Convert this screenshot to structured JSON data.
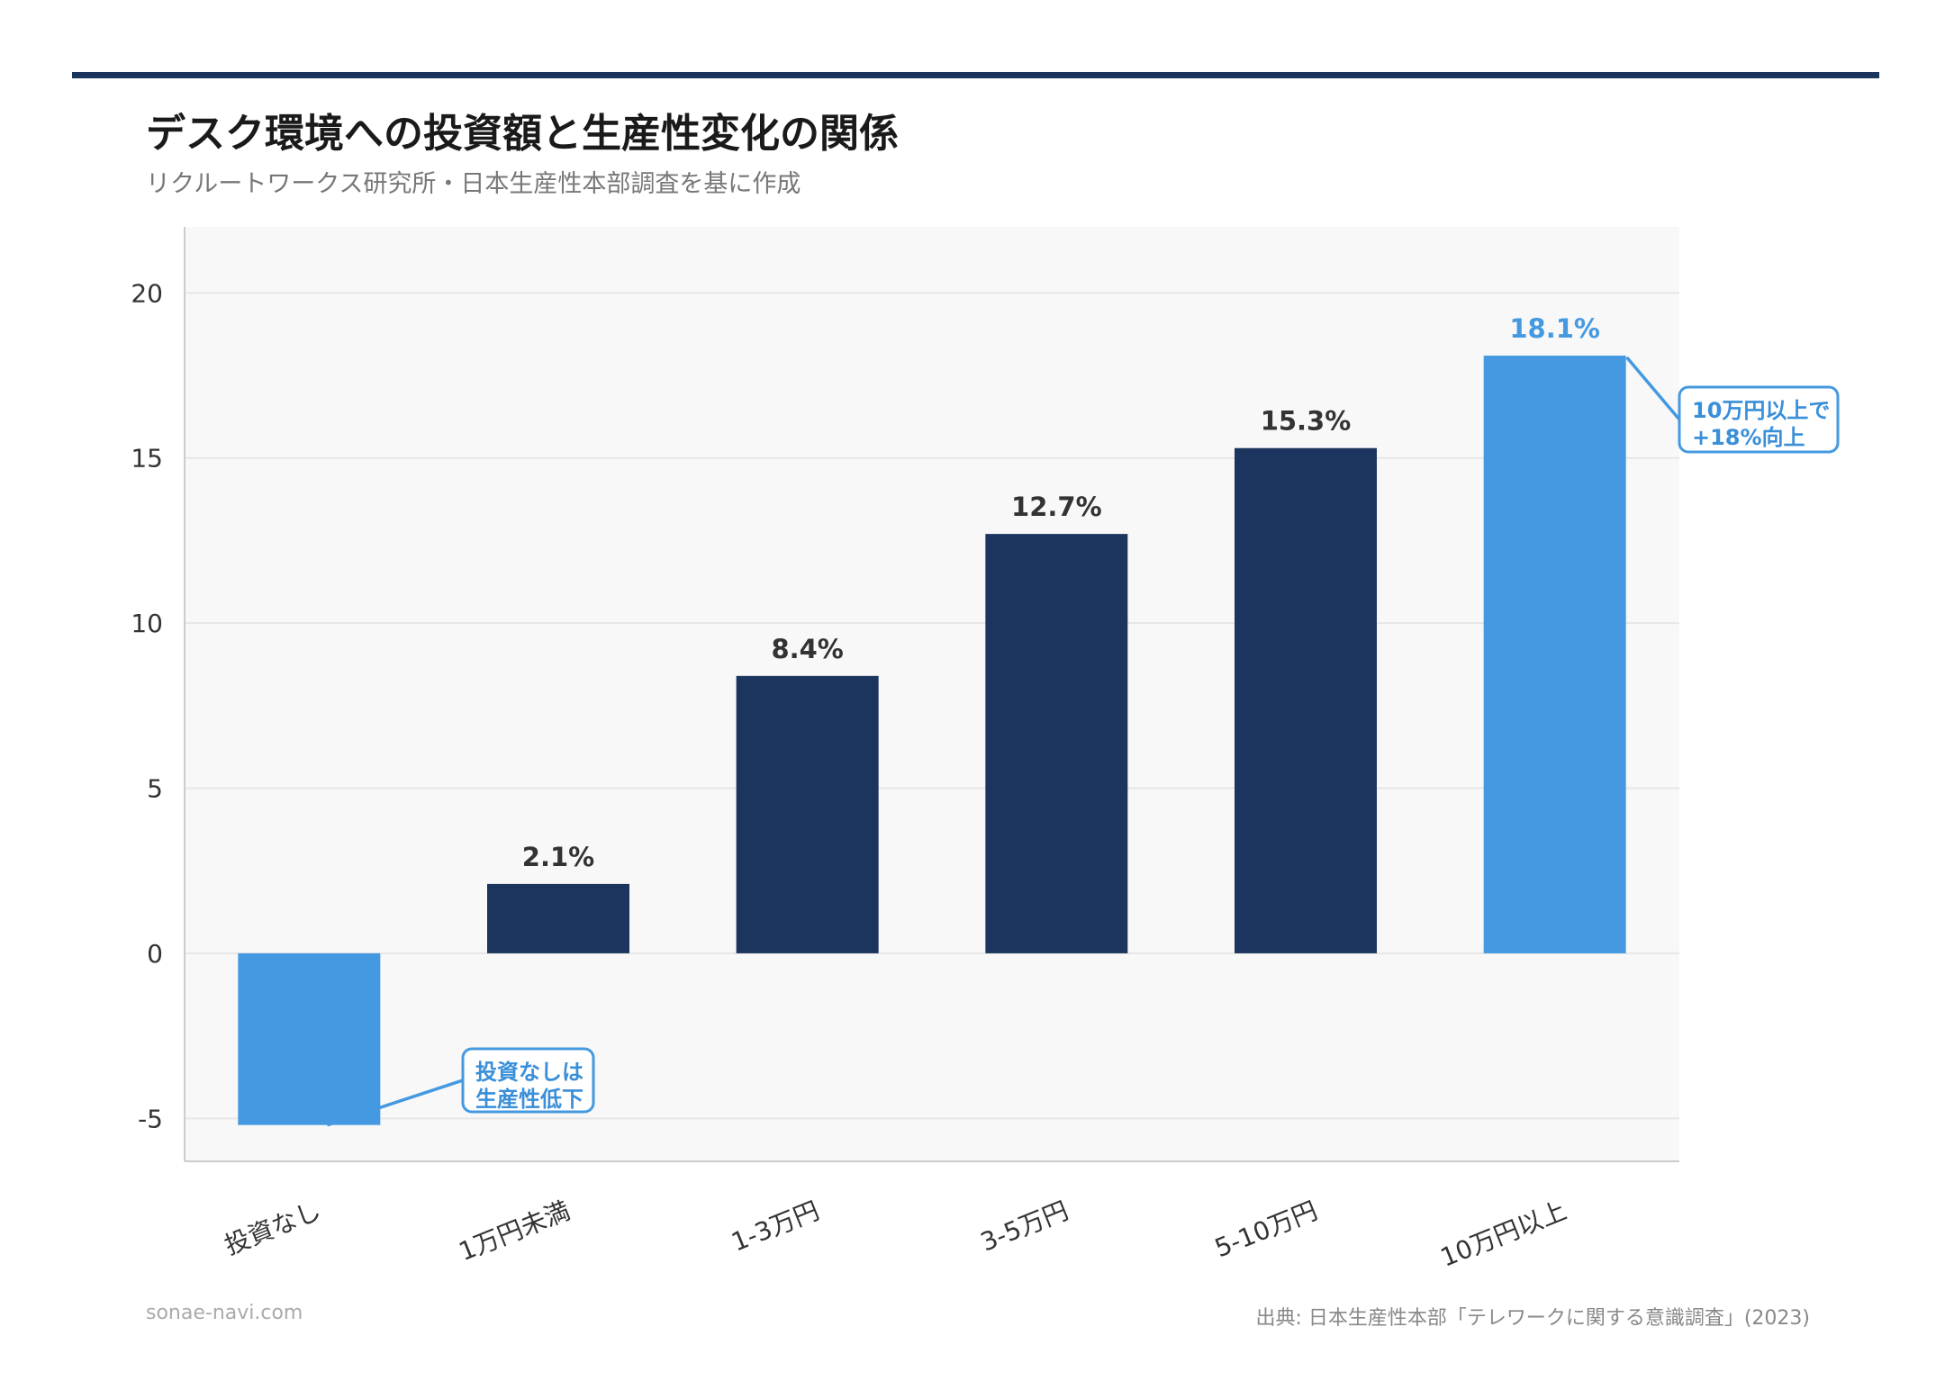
{
  "header": {
    "title": "デスク環境への投資額と生産性変化の関係",
    "subtitle": "リクルートワークス研究所・日本生産性本部調査を基に作成"
  },
  "footer": {
    "site": "sonae-navi.com",
    "source": "出典: 日本生産性本部「テレワークに関する意識調査」(2023)"
  },
  "colors": {
    "navy": "#1c355e",
    "highlight": "#4499e0",
    "plot_bg": "#f8f8f8",
    "grid": "#e6e6e6",
    "rule": "#1c355e"
  },
  "chart_data": {
    "type": "bar",
    "categories": [
      "投資なし",
      "1万円未満",
      "1-3万円",
      "3-5万円",
      "5-10万円",
      "10万円以上"
    ],
    "values": [
      -5.2,
      2.1,
      8.4,
      12.7,
      15.3,
      18.1
    ],
    "highlight": [
      true,
      false,
      false,
      false,
      false,
      true
    ],
    "data_labels": [
      "",
      "2.1%",
      "8.4%",
      "12.7%",
      "15.3%",
      "18.1%"
    ],
    "ylim": [
      -6.3,
      22
    ],
    "yticks": [
      20,
      15,
      10,
      5,
      0,
      -5
    ],
    "ytick_labels": [
      "20",
      "15",
      "10",
      "5",
      "0",
      "-5"
    ],
    "xlabel": "",
    "ylabel": "",
    "grid": true,
    "annotations": [
      {
        "lines": [
          "投資なしは",
          "生産性低下"
        ],
        "target_category": "投資なし"
      },
      {
        "lines": [
          "10万円以上で",
          "+18%向上"
        ],
        "target_category": "10万円以上"
      }
    ]
  }
}
